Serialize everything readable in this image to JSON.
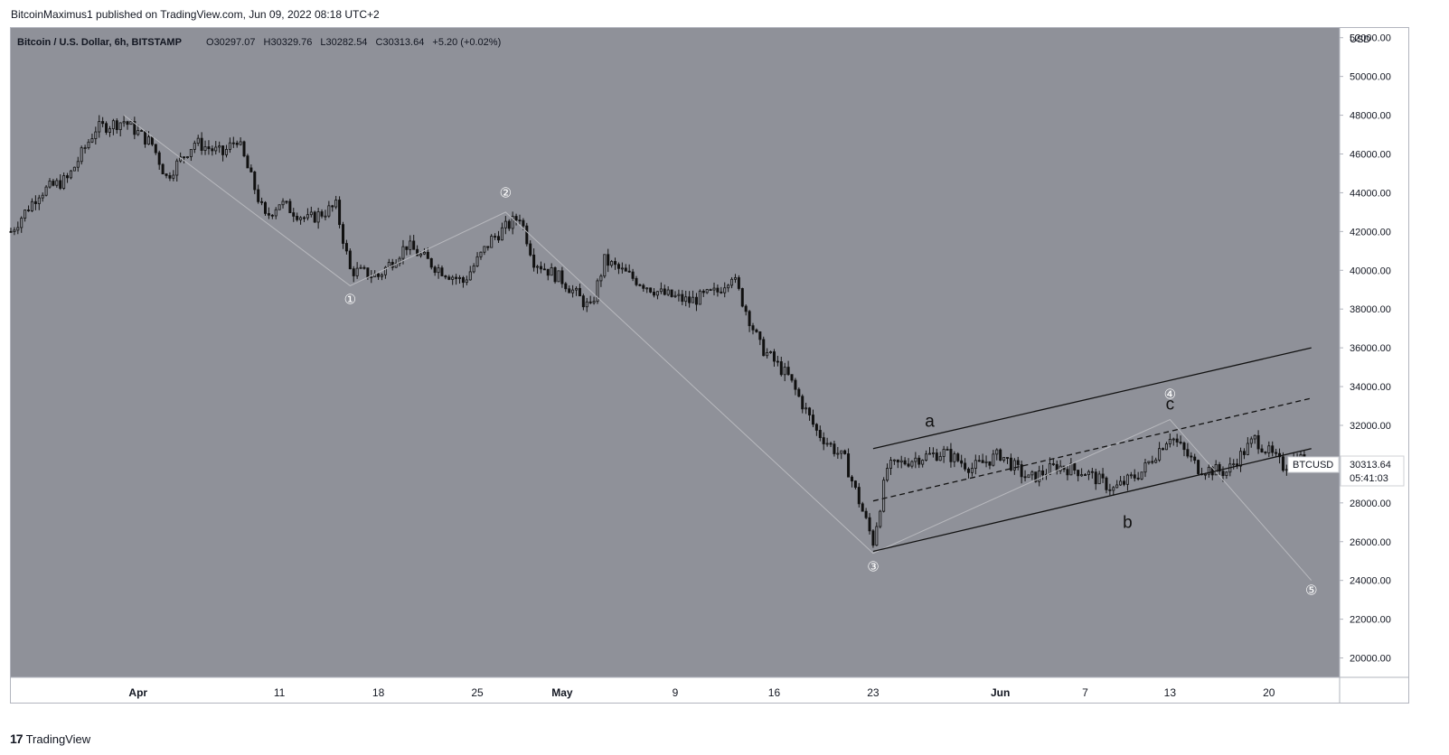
{
  "header": {
    "published_by": "BitcoinMaximus1 published on TradingView.com, Jun 09, 2022 08:18 UTC+2"
  },
  "footer": {
    "logo_glyph": "17",
    "brand": "TradingView"
  },
  "legend": {
    "symbol": "Bitcoin / U.S. Dollar, 6h, BITSTAMP",
    "o_label": "O",
    "o_value": "30297.07",
    "h_label": "H",
    "h_value": "30329.76",
    "l_label": "L",
    "l_value": "30282.54",
    "c_label": "C",
    "c_value": "30313.64",
    "change": "+5.20 (+0.02%)"
  },
  "price_axis": {
    "currency": "USD",
    "ticks": [
      "52000.00",
      "50000.00",
      "48000.00",
      "46000.00",
      "44000.00",
      "42000.00",
      "40000.00",
      "38000.00",
      "36000.00",
      "34000.00",
      "32000.00",
      "30000.00",
      "28000.00",
      "26000.00",
      "24000.00",
      "22000.00",
      "20000.00"
    ],
    "tag_symbol": "BTCUSD",
    "tag_price": "30313.64",
    "tag_countdown": "05:41:03"
  },
  "time_axis": {
    "ticks": [
      {
        "label": "Apr",
        "month": true
      },
      {
        "label": "11",
        "month": false
      },
      {
        "label": "18",
        "month": false
      },
      {
        "label": "25",
        "month": false
      },
      {
        "label": "May",
        "month": true
      },
      {
        "label": "9",
        "month": false
      },
      {
        "label": "16",
        "month": false
      },
      {
        "label": "23",
        "month": false
      },
      {
        "label": "Jun",
        "month": true
      },
      {
        "label": "7",
        "month": false
      },
      {
        "label": "13",
        "month": false
      },
      {
        "label": "20",
        "month": false
      }
    ]
  },
  "colors": {
    "plot_bg": "#8f9199",
    "candle": "#111111",
    "wave_line": "#b8b9be",
    "channel": "#111111",
    "axis_text": "#131722",
    "price_tag_bg": "#ffffff"
  },
  "chart_data": {
    "type": "candlestick",
    "title": "Bitcoin / U.S. Dollar, 6h, BITSTAMP",
    "ylabel": "USD",
    "ylim": [
      19000,
      52500
    ],
    "x_range": [
      "2022-03-23",
      "2022-06-25"
    ],
    "last_close": 30313.64,
    "price_series": [
      [
        "2022-03-23",
        42000
      ],
      [
        "2022-03-25",
        44000
      ],
      [
        "2022-03-27",
        44700
      ],
      [
        "2022-03-29",
        47300
      ],
      [
        "2022-03-31",
        47700
      ],
      [
        "2022-04-02",
        46500
      ],
      [
        "2022-04-03",
        44800
      ],
      [
        "2022-04-05",
        46600
      ],
      [
        "2022-04-07",
        46000
      ],
      [
        "2022-04-08",
        46800
      ],
      [
        "2022-04-10",
        42700
      ],
      [
        "2022-04-11",
        43500
      ],
      [
        "2022-04-13",
        42600
      ],
      [
        "2022-04-15",
        43300
      ],
      [
        "2022-04-16",
        40000
      ],
      [
        "2022-04-18",
        39700
      ],
      [
        "2022-04-20",
        41300
      ],
      [
        "2022-04-22",
        40200
      ],
      [
        "2022-04-24",
        39400
      ],
      [
        "2022-04-26",
        41600
      ],
      [
        "2022-04-28",
        42800
      ],
      [
        "2022-04-29",
        40500
      ],
      [
        "2022-05-01",
        39500
      ],
      [
        "2022-05-03",
        38000
      ],
      [
        "2022-05-04",
        40500
      ],
      [
        "2022-05-06",
        39600
      ],
      [
        "2022-05-08",
        38800
      ],
      [
        "2022-05-10",
        38400
      ],
      [
        "2022-05-12",
        38900
      ],
      [
        "2022-05-13",
        39800
      ],
      [
        "2022-05-15",
        36100
      ],
      [
        "2022-05-17",
        34500
      ],
      [
        "2022-05-19",
        31700
      ],
      [
        "2022-05-21",
        30200
      ],
      [
        "2022-05-23",
        26000
      ],
      [
        "2022-05-24",
        29800
      ],
      [
        "2022-05-26",
        30300
      ],
      [
        "2022-05-28",
        30600
      ],
      [
        "2022-05-30",
        29800
      ],
      [
        "2022-06-01",
        30500
      ],
      [
        "2022-06-03",
        29200
      ],
      [
        "2022-06-05",
        29900
      ],
      [
        "2022-06-07",
        29600
      ],
      [
        "2022-06-09",
        28700
      ],
      [
        "2022-06-11",
        29600
      ],
      [
        "2022-06-13",
        31500
      ],
      [
        "2022-06-15",
        29800
      ],
      [
        "2022-06-17",
        29600
      ],
      [
        "2022-06-19",
        31300
      ],
      [
        "2022-06-21",
        29900
      ],
      [
        "2022-06-22",
        30300
      ]
    ],
    "wave_count": [
      {
        "label": "①",
        "x": "2022-04-16",
        "y": 38500,
        "pos": "below"
      },
      {
        "label": "②",
        "x": "2022-04-27",
        "y": 44000,
        "pos": "above"
      },
      {
        "label": "③",
        "x": "2022-05-23",
        "y": 24700,
        "pos": "below"
      },
      {
        "label": "④",
        "x": "2022-06-13",
        "y": 33600,
        "pos": "above"
      },
      {
        "label": "⑤",
        "x": "2022-06-23",
        "y": 23500,
        "pos": "end"
      }
    ],
    "wave_path": [
      [
        "2022-03-31",
        48000
      ],
      [
        "2022-04-16",
        39200
      ],
      [
        "2022-04-27",
        43000
      ],
      [
        "2022-05-23",
        25400
      ],
      [
        "2022-06-13",
        32300
      ],
      [
        "2022-06-23",
        24000
      ]
    ],
    "corrective_labels": [
      {
        "label": "a",
        "x": "2022-05-27",
        "y": 32200
      },
      {
        "label": "b",
        "x": "2022-06-10",
        "y": 27000
      },
      {
        "label": "c",
        "x": "2022-06-13",
        "y": 33100
      }
    ],
    "channel": {
      "upper": [
        [
          "2022-05-23",
          30800
        ],
        [
          "2022-06-23",
          36000
        ]
      ],
      "middle": [
        [
          "2022-05-23",
          28100
        ],
        [
          "2022-06-23",
          33400
        ]
      ],
      "lower": [
        [
          "2022-05-23",
          25500
        ],
        [
          "2022-06-23",
          30800
        ]
      ]
    }
  }
}
